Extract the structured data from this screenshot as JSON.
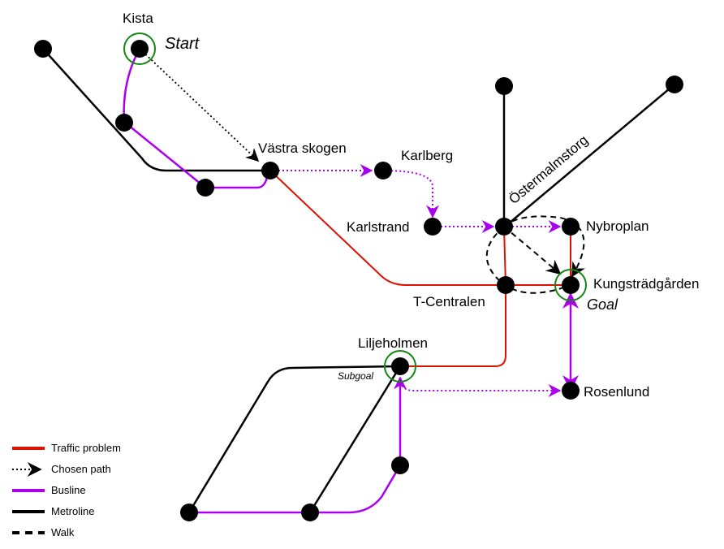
{
  "stations": {
    "kista": "Kista",
    "vastra_skogen": "Västra skogen",
    "karlberg": "Karlberg",
    "karlstrand": "Karlstrand",
    "ostermalmstorg": "Östermalmstorg",
    "nybroplan": "Nybroplan",
    "kungstradgarden": "Kungsträdgården",
    "t_centralen": "T-Centralen",
    "liljeholmen": "Liljeholmen",
    "rosenlund": "Rosenlund"
  },
  "markers": {
    "start": "Start",
    "goal": "Goal",
    "subgoal": "Subgoal"
  },
  "legend": {
    "traffic_problem": "Traffic problem",
    "chosen_path": "Chosen path",
    "busline": "Busline",
    "metroline": "Metroline",
    "walk": "Walk"
  },
  "colors": {
    "traffic_problem": "#dd1100",
    "busline": "#aa00ee",
    "metroline": "#000000",
    "highlight_ring": "#118811"
  }
}
